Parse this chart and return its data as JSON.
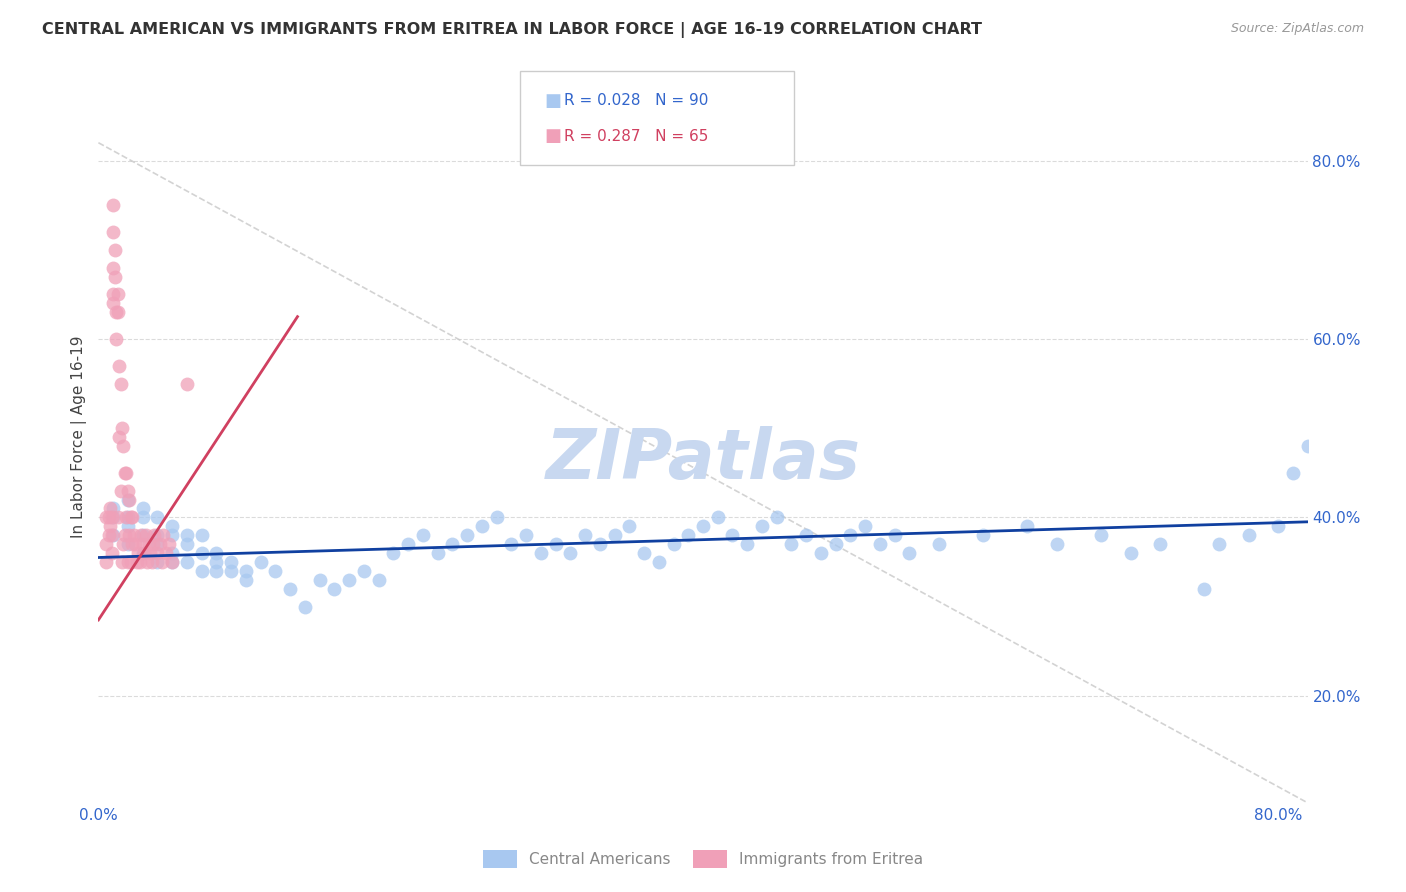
{
  "title": "CENTRAL AMERICAN VS IMMIGRANTS FROM ERITREA IN LABOR FORCE | AGE 16-19 CORRELATION CHART",
  "source": "Source: ZipAtlas.com",
  "ylabel": "In Labor Force | Age 16-19",
  "xlim": [
    0.0,
    0.82
  ],
  "ylim": [
    0.08,
    0.9
  ],
  "ytick_positions": [
    0.2,
    0.4,
    0.6,
    0.8
  ],
  "ytick_labels": [
    "20.0%",
    "40.0%",
    "60.0%",
    "80.0%"
  ],
  "blue_color": "#A8C8F0",
  "pink_color": "#F0A0B8",
  "blue_line_color": "#1040A0",
  "pink_line_color": "#D04060",
  "diag_color": "#C8C8C8",
  "grid_color": "#CCCCCC",
  "background_color": "#FFFFFF",
  "watermark": "ZIPatlas",
  "watermark_color": "#C8D8F0",
  "legend_R_blue": "R = 0.028",
  "legend_N_blue": "N = 90",
  "legend_R_pink": "R = 0.287",
  "legend_N_pink": "N = 65",
  "blue_x": [
    0.01,
    0.01,
    0.01,
    0.02,
    0.02,
    0.02,
    0.02,
    0.03,
    0.03,
    0.03,
    0.03,
    0.04,
    0.04,
    0.04,
    0.04,
    0.05,
    0.05,
    0.05,
    0.05,
    0.06,
    0.06,
    0.06,
    0.07,
    0.07,
    0.07,
    0.08,
    0.08,
    0.08,
    0.09,
    0.09,
    0.1,
    0.1,
    0.11,
    0.12,
    0.13,
    0.14,
    0.15,
    0.16,
    0.17,
    0.18,
    0.19,
    0.2,
    0.21,
    0.22,
    0.23,
    0.24,
    0.25,
    0.26,
    0.27,
    0.28,
    0.29,
    0.3,
    0.31,
    0.32,
    0.33,
    0.34,
    0.35,
    0.36,
    0.37,
    0.38,
    0.39,
    0.4,
    0.41,
    0.42,
    0.43,
    0.44,
    0.45,
    0.46,
    0.47,
    0.48,
    0.49,
    0.5,
    0.51,
    0.52,
    0.53,
    0.54,
    0.55,
    0.57,
    0.6,
    0.63,
    0.65,
    0.68,
    0.7,
    0.72,
    0.75,
    0.76,
    0.78,
    0.8,
    0.81,
    0.82
  ],
  "blue_y": [
    0.38,
    0.4,
    0.41,
    0.37,
    0.39,
    0.4,
    0.42,
    0.36,
    0.38,
    0.4,
    0.41,
    0.35,
    0.37,
    0.38,
    0.4,
    0.35,
    0.36,
    0.38,
    0.39,
    0.35,
    0.37,
    0.38,
    0.34,
    0.36,
    0.38,
    0.34,
    0.35,
    0.36,
    0.34,
    0.35,
    0.33,
    0.34,
    0.35,
    0.34,
    0.32,
    0.3,
    0.33,
    0.32,
    0.33,
    0.34,
    0.33,
    0.36,
    0.37,
    0.38,
    0.36,
    0.37,
    0.38,
    0.39,
    0.4,
    0.37,
    0.38,
    0.36,
    0.37,
    0.36,
    0.38,
    0.37,
    0.38,
    0.39,
    0.36,
    0.35,
    0.37,
    0.38,
    0.39,
    0.4,
    0.38,
    0.37,
    0.39,
    0.4,
    0.37,
    0.38,
    0.36,
    0.37,
    0.38,
    0.39,
    0.37,
    0.38,
    0.36,
    0.37,
    0.38,
    0.39,
    0.37,
    0.38,
    0.36,
    0.37,
    0.32,
    0.37,
    0.38,
    0.39,
    0.45,
    0.48
  ],
  "pink_x": [
    0.005,
    0.005,
    0.005,
    0.007,
    0.007,
    0.008,
    0.008,
    0.009,
    0.009,
    0.009,
    0.01,
    0.01,
    0.01,
    0.01,
    0.01,
    0.011,
    0.011,
    0.012,
    0.012,
    0.013,
    0.013,
    0.013,
    0.014,
    0.014,
    0.015,
    0.015,
    0.016,
    0.016,
    0.017,
    0.017,
    0.018,
    0.018,
    0.019,
    0.019,
    0.02,
    0.02,
    0.021,
    0.021,
    0.022,
    0.022,
    0.023,
    0.023,
    0.024,
    0.025,
    0.026,
    0.027,
    0.028,
    0.029,
    0.03,
    0.031,
    0.032,
    0.033,
    0.034,
    0.035,
    0.036,
    0.037,
    0.038,
    0.04,
    0.042,
    0.043,
    0.044,
    0.046,
    0.048,
    0.05,
    0.06
  ],
  "pink_y": [
    0.4,
    0.37,
    0.35,
    0.4,
    0.38,
    0.41,
    0.39,
    0.4,
    0.38,
    0.36,
    0.75,
    0.72,
    0.68,
    0.65,
    0.64,
    0.7,
    0.67,
    0.63,
    0.6,
    0.65,
    0.63,
    0.4,
    0.57,
    0.49,
    0.55,
    0.43,
    0.5,
    0.35,
    0.48,
    0.37,
    0.45,
    0.38,
    0.45,
    0.4,
    0.43,
    0.35,
    0.42,
    0.38,
    0.4,
    0.35,
    0.4,
    0.37,
    0.38,
    0.37,
    0.35,
    0.36,
    0.35,
    0.38,
    0.37,
    0.36,
    0.38,
    0.35,
    0.37,
    0.36,
    0.35,
    0.37,
    0.38,
    0.36,
    0.37,
    0.35,
    0.38,
    0.36,
    0.37,
    0.35,
    0.55
  ]
}
